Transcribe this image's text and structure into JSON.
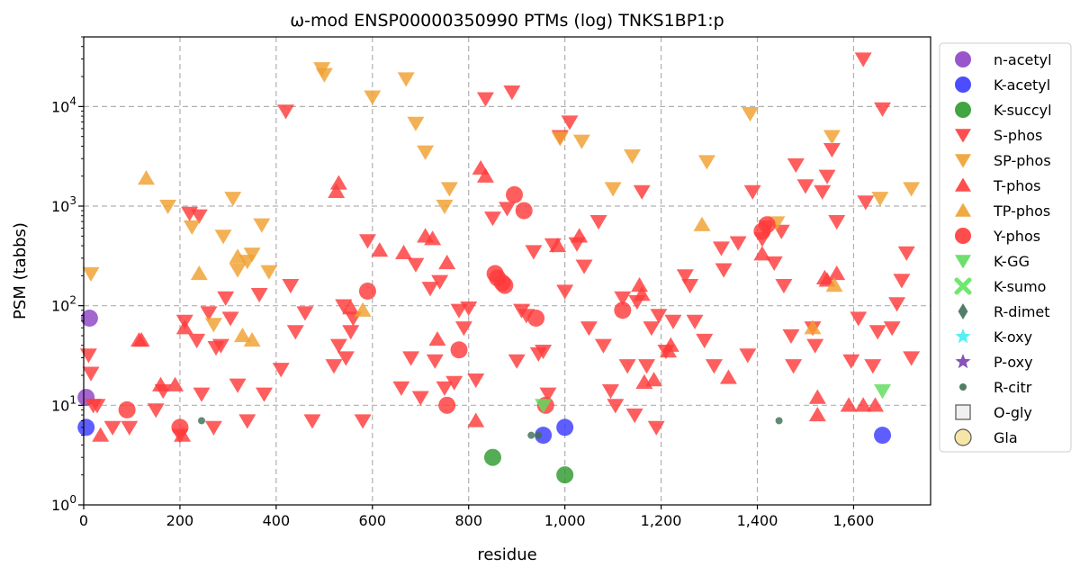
{
  "chart_data": {
    "type": "scatter",
    "title": "ω-mod ENSP00000350990 PTMs (log) TNKS1BP1:p",
    "xlabel": "residue",
    "ylabel": "PSM (tabbs)",
    "xlim": [
      0,
      1760
    ],
    "ylim": [
      1,
      50000
    ],
    "yscale": "log",
    "x_ticks": [
      0,
      200,
      400,
      600,
      800,
      1000,
      1200,
      1400,
      1600
    ],
    "x_tick_labels": [
      "0",
      "200",
      "400",
      "600",
      "800",
      "1,000",
      "1,200",
      "1,400",
      "1,600"
    ],
    "y_ticks": [
      1,
      10,
      100,
      1000,
      10000
    ],
    "y_tick_labels": [
      "10^0",
      "10^1",
      "10^2",
      "10^3",
      "10^4"
    ],
    "grid": true,
    "legend_position": "outside-right",
    "series": [
      {
        "name": "n-acetyl",
        "marker": "circle",
        "color": "#8e44c4",
        "points": [
          [
            12,
            75
          ],
          [
            5,
            12
          ]
        ]
      },
      {
        "name": "K-acetyl",
        "marker": "circle",
        "color": "#3a3aff",
        "points": [
          [
            5,
            6
          ],
          [
            955,
            5
          ],
          [
            1000,
            6
          ],
          [
            1660,
            5
          ]
        ]
      },
      {
        "name": "K-succyl",
        "marker": "circle",
        "color": "#2e9a2e",
        "points": [
          [
            850,
            3
          ],
          [
            1000,
            2
          ]
        ]
      },
      {
        "name": "S-phos",
        "marker": "triangle-down",
        "color": "#ff3a3a",
        "points": [
          [
            10,
            32
          ],
          [
            15,
            21
          ],
          [
            20,
            10
          ],
          [
            28,
            10
          ],
          [
            60,
            6
          ],
          [
            95,
            6
          ],
          [
            150,
            9
          ],
          [
            165,
            14
          ],
          [
            200,
            5
          ],
          [
            210,
            70
          ],
          [
            220,
            850
          ],
          [
            240,
            800
          ],
          [
            235,
            45
          ],
          [
            245,
            13
          ],
          [
            260,
            85
          ],
          [
            270,
            6
          ],
          [
            275,
            38
          ],
          [
            285,
            40
          ],
          [
            295,
            120
          ],
          [
            305,
            75
          ],
          [
            320,
            16
          ],
          [
            340,
            7
          ],
          [
            365,
            130
          ],
          [
            375,
            13
          ],
          [
            410,
            23
          ],
          [
            420,
            9000
          ],
          [
            430,
            160
          ],
          [
            440,
            55
          ],
          [
            460,
            85
          ],
          [
            475,
            7
          ],
          [
            520,
            25
          ],
          [
            530,
            40
          ],
          [
            540,
            100
          ],
          [
            545,
            30
          ],
          [
            555,
            55
          ],
          [
            560,
            75
          ],
          [
            580,
            7
          ],
          [
            590,
            450
          ],
          [
            660,
            15
          ],
          [
            680,
            30
          ],
          [
            690,
            260
          ],
          [
            700,
            12
          ],
          [
            720,
            150
          ],
          [
            730,
            28
          ],
          [
            740,
            175
          ],
          [
            750,
            15
          ],
          [
            770,
            17
          ],
          [
            780,
            90
          ],
          [
            790,
            60
          ],
          [
            800,
            95
          ],
          [
            815,
            18
          ],
          [
            835,
            12000
          ],
          [
            850,
            760
          ],
          [
            880,
            950
          ],
          [
            890,
            14000
          ],
          [
            900,
            28
          ],
          [
            910,
            90
          ],
          [
            920,
            80
          ],
          [
            935,
            350
          ],
          [
            945,
            33
          ],
          [
            955,
            35
          ],
          [
            965,
            13
          ],
          [
            975,
            410
          ],
          [
            990,
            5000
          ],
          [
            1000,
            140
          ],
          [
            1010,
            7000
          ],
          [
            1025,
            420
          ],
          [
            1040,
            250
          ],
          [
            1050,
            60
          ],
          [
            1070,
            700
          ],
          [
            1080,
            40
          ],
          [
            1095,
            14
          ],
          [
            1105,
            10
          ],
          [
            1120,
            120
          ],
          [
            1130,
            25
          ],
          [
            1145,
            8
          ],
          [
            1150,
            110
          ],
          [
            1160,
            1400
          ],
          [
            1170,
            25
          ],
          [
            1180,
            60
          ],
          [
            1190,
            6
          ],
          [
            1195,
            80
          ],
          [
            1210,
            35
          ],
          [
            1225,
            70
          ],
          [
            1250,
            200
          ],
          [
            1260,
            160
          ],
          [
            1270,
            70
          ],
          [
            1290,
            45
          ],
          [
            1310,
            25
          ],
          [
            1325,
            380
          ],
          [
            1330,
            230
          ],
          [
            1360,
            430
          ],
          [
            1380,
            32
          ],
          [
            1390,
            1400
          ],
          [
            1410,
            470
          ],
          [
            1420,
            620
          ],
          [
            1435,
            270
          ],
          [
            1450,
            560
          ],
          [
            1455,
            160
          ],
          [
            1470,
            50
          ],
          [
            1475,
            25
          ],
          [
            1480,
            2600
          ],
          [
            1500,
            1600
          ],
          [
            1515,
            60
          ],
          [
            1520,
            40
          ],
          [
            1535,
            1400
          ],
          [
            1545,
            2000
          ],
          [
            1555,
            3700
          ],
          [
            1565,
            700
          ],
          [
            1595,
            28
          ],
          [
            1610,
            75
          ],
          [
            1620,
            30000
          ],
          [
            1625,
            1100
          ],
          [
            1640,
            25
          ],
          [
            1650,
            55
          ],
          [
            1660,
            9500
          ],
          [
            1680,
            60
          ],
          [
            1690,
            105
          ],
          [
            1700,
            180
          ],
          [
            1710,
            340
          ],
          [
            1720,
            30
          ]
        ]
      },
      {
        "name": "SP-phos",
        "marker": "triangle-down",
        "color": "#f0a030",
        "points": [
          [
            15,
            210
          ],
          [
            175,
            1000
          ],
          [
            225,
            620
          ],
          [
            270,
            65
          ],
          [
            290,
            500
          ],
          [
            310,
            1200
          ],
          [
            320,
            230
          ],
          [
            340,
            280
          ],
          [
            350,
            330
          ],
          [
            370,
            650
          ],
          [
            385,
            220
          ],
          [
            495,
            24000
          ],
          [
            500,
            21000
          ],
          [
            600,
            12500
          ],
          [
            670,
            19000
          ],
          [
            690,
            6800
          ],
          [
            710,
            3500
          ],
          [
            750,
            1000
          ],
          [
            760,
            1500
          ],
          [
            990,
            4800
          ],
          [
            1035,
            4500
          ],
          [
            1100,
            1500
          ],
          [
            1140,
            3200
          ],
          [
            1295,
            2800
          ],
          [
            1385,
            8500
          ],
          [
            1440,
            680
          ],
          [
            1555,
            5000
          ],
          [
            1655,
            1200
          ],
          [
            1720,
            1500
          ]
        ]
      },
      {
        "name": "T-phos",
        "marker": "triangle-up",
        "color": "#ff3a3a",
        "points": [
          [
            35,
            5
          ],
          [
            115,
            45
          ],
          [
            120,
            45
          ],
          [
            160,
            16
          ],
          [
            190,
            16
          ],
          [
            205,
            5
          ],
          [
            210,
            60
          ],
          [
            525,
            1400
          ],
          [
            530,
            1700
          ],
          [
            555,
            95
          ],
          [
            615,
            360
          ],
          [
            665,
            340
          ],
          [
            710,
            500
          ],
          [
            725,
            470
          ],
          [
            735,
            46
          ],
          [
            755,
            270
          ],
          [
            815,
            7
          ],
          [
            825,
            2400
          ],
          [
            835,
            2000
          ],
          [
            985,
            400
          ],
          [
            1030,
            500
          ],
          [
            1155,
            160
          ],
          [
            1160,
            130
          ],
          [
            1165,
            17
          ],
          [
            1185,
            18
          ],
          [
            1215,
            35
          ],
          [
            1220,
            40
          ],
          [
            1340,
            19
          ],
          [
            1410,
            330
          ],
          [
            1540,
            190
          ],
          [
            1545,
            180
          ],
          [
            1565,
            210
          ],
          [
            1590,
            10
          ],
          [
            1620,
            10
          ],
          [
            1645,
            10
          ],
          [
            1525,
            8
          ],
          [
            1525,
            12
          ]
        ]
      },
      {
        "name": "TP-phos",
        "marker": "triangle-up",
        "color": "#f0a030",
        "points": [
          [
            130,
            1900
          ],
          [
            240,
            210
          ],
          [
            320,
            310
          ],
          [
            330,
            50
          ],
          [
            350,
            45
          ],
          [
            580,
            90
          ],
          [
            1285,
            650
          ],
          [
            1515,
            60
          ],
          [
            1560,
            160
          ]
        ]
      },
      {
        "name": "Y-phos",
        "marker": "circle",
        "color": "#ff3a3a",
        "points": [
          [
            90,
            9
          ],
          [
            200,
            6
          ],
          [
            590,
            140
          ],
          [
            755,
            10
          ],
          [
            780,
            36
          ],
          [
            855,
            210
          ],
          [
            860,
            190
          ],
          [
            870,
            170
          ],
          [
            875,
            160
          ],
          [
            895,
            1300
          ],
          [
            915,
            900
          ],
          [
            940,
            75
          ],
          [
            960,
            10
          ],
          [
            1120,
            90
          ],
          [
            1410,
            560
          ],
          [
            1420,
            650
          ]
        ]
      },
      {
        "name": "K-GG",
        "marker": "triangle-down",
        "color": "#5edc5e",
        "points": [
          [
            955,
            10
          ],
          [
            1660,
            14
          ]
        ]
      },
      {
        "name": "K-sumo",
        "marker": "x",
        "color": "#6ee86e",
        "points": []
      },
      {
        "name": "R-dimet",
        "marker": "diamond",
        "color": "#3f6f57",
        "points": []
      },
      {
        "name": "K-oxy",
        "marker": "star",
        "color": "#40f0f0",
        "points": []
      },
      {
        "name": "P-oxy",
        "marker": "star",
        "color": "#7b3fb0",
        "points": []
      },
      {
        "name": "R-citr",
        "marker": "small-circle",
        "color": "#3f6f57",
        "points": [
          [
            245,
            7
          ],
          [
            930,
            5
          ],
          [
            945,
            5
          ],
          [
            1445,
            7
          ]
        ]
      },
      {
        "name": "O-gly",
        "marker": "square",
        "color": "#eeeeee",
        "points": []
      },
      {
        "name": "Gla",
        "marker": "circle",
        "color": "#f5e6a8",
        "points": []
      }
    ]
  }
}
